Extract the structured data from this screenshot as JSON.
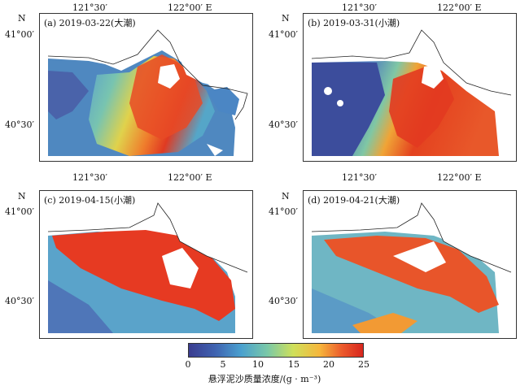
{
  "panels": [
    {
      "title": "(a) 2019-03-22(大潮)",
      "variant": "a"
    },
    {
      "title": "(b) 2019-03-31(小潮)",
      "variant": "b"
    },
    {
      "title": "(c) 2019-04-15(小潮)",
      "variant": "c"
    },
    {
      "title": "(d) 2019-04-21(大潮)",
      "variant": "d"
    }
  ],
  "axes": {
    "lon_121_30": "121°30′",
    "lon_122_00": "122°00′ E",
    "lat_41_00": "41°00′",
    "lat_40_30": "40°30′",
    "north": "N"
  },
  "colorbar": {
    "title": "悬浮泥沙质量浓度/(g · m⁻³)",
    "ticks": [
      "0",
      "5",
      "10",
      "15",
      "20",
      "25"
    ],
    "min": 0,
    "max": 25
  },
  "colors": {
    "low": "#3a3c8f",
    "mid": "#79c8a8",
    "high": "#d7261e",
    "land": "#ffffff"
  }
}
